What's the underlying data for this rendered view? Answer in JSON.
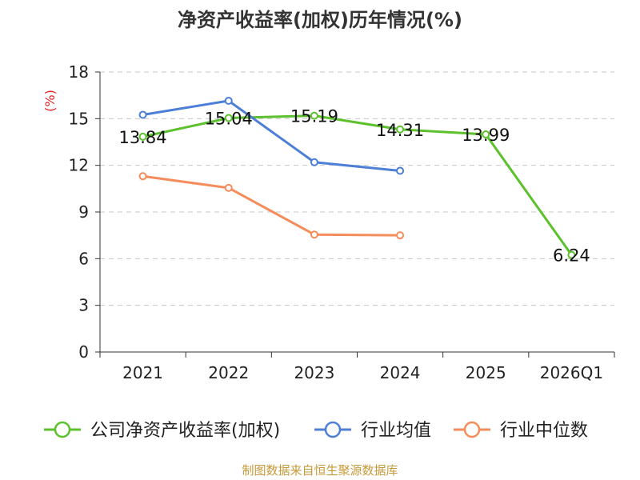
{
  "chart_data": {
    "type": "line",
    "title": "净资产收益率(加权)历年情况(%)",
    "ylabel": "(%)",
    "xlabel": "",
    "categories": [
      "2021",
      "2022",
      "2023",
      "2024",
      "2025",
      "2026Q1"
    ],
    "yticks": [
      0,
      3,
      6,
      9,
      12,
      15,
      18
    ],
    "ylim": [
      0,
      18
    ],
    "grid": true,
    "legend_position": "bottom",
    "series": [
      {
        "name": "公司净资产收益率(加权)",
        "color": "#5cc12c",
        "values": [
          13.84,
          15.04,
          15.19,
          14.31,
          13.99,
          6.24
        ],
        "labels": [
          "13.84",
          "15.04",
          "15.19",
          "14.31",
          "13.99",
          "6.24"
        ]
      },
      {
        "name": "行业均值",
        "color": "#4d7fd6",
        "values": [
          15.25,
          16.15,
          12.2,
          11.65,
          null,
          null
        ]
      },
      {
        "name": "行业中位数",
        "color": "#f58c5b",
        "values": [
          11.3,
          10.55,
          7.55,
          7.5,
          null,
          null
        ]
      }
    ],
    "source": "制图数据来自恒生聚源数据库"
  }
}
